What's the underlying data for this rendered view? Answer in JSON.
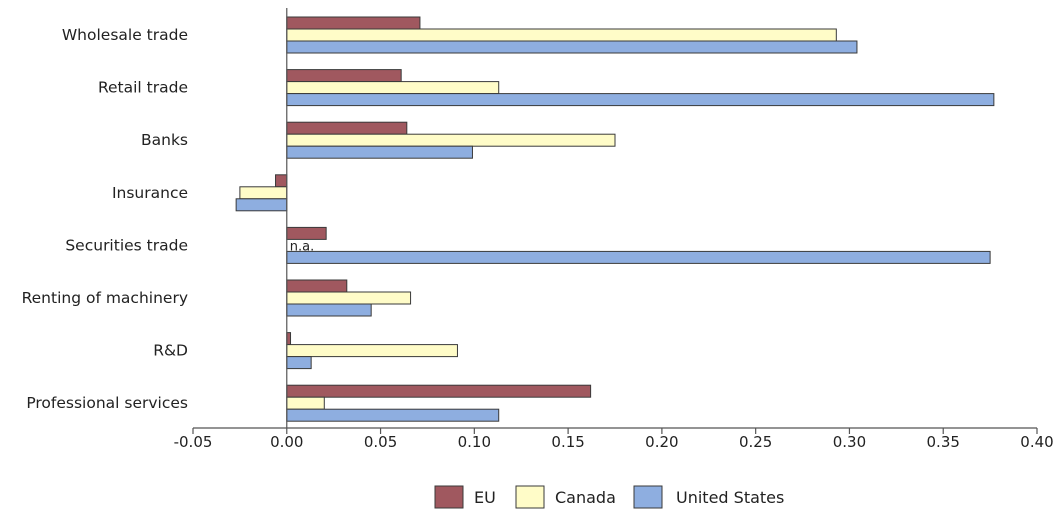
{
  "chart_data": {
    "type": "bar",
    "orientation": "horizontal",
    "categories": [
      "Wholesale trade",
      "Retail trade",
      "Banks",
      "Insurance",
      "Securities trade",
      "Renting of machinery",
      "R&D",
      "Professional services"
    ],
    "series": [
      {
        "name": "EU",
        "color": "#a0585f",
        "values": [
          0.071,
          0.061,
          0.064,
          -0.006,
          0.021,
          0.032,
          0.002,
          0.162
        ]
      },
      {
        "name": "Canada",
        "color": "#fffcc8",
        "values": [
          0.293,
          0.113,
          0.175,
          -0.025,
          null,
          0.066,
          0.091,
          0.02
        ]
      },
      {
        "name": "United States",
        "color": "#8eaee0",
        "values": [
          0.304,
          0.377,
          0.099,
          -0.027,
          0.375,
          0.045,
          0.013,
          0.113
        ]
      }
    ],
    "annotations": [
      {
        "category": "Securities trade",
        "series": "Canada",
        "text": "n.a."
      }
    ],
    "xlim": [
      -0.05,
      0.4
    ],
    "xticks": [
      "-0.05",
      "0.00",
      "0.05",
      "0.10",
      "0.15",
      "0.20",
      "0.25",
      "0.30",
      "0.35",
      "0.40"
    ],
    "title": "",
    "xlabel": "",
    "ylabel": "",
    "grid": false,
    "legend": "bottom"
  }
}
